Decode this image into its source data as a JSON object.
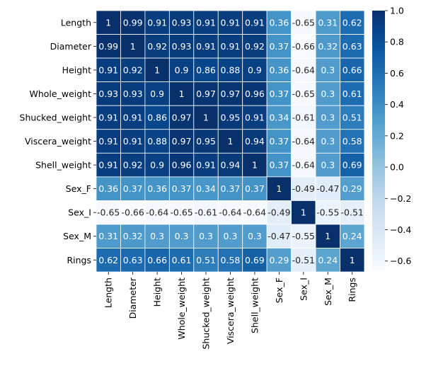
{
  "chart_data": {
    "type": "heatmap",
    "title": "",
    "xlabel": "",
    "ylabel": "",
    "row_labels": [
      "Length",
      "Diameter",
      "Height",
      "Whole_weight",
      "Shucked_weight",
      "Viscera_weight",
      "Shell_weight",
      "Sex_F",
      "Sex_I",
      "Sex_M",
      "Rings"
    ],
    "col_labels": [
      "Length",
      "Diameter",
      "Height",
      "Whole_weight",
      "Shucked_weight",
      "Viscera_weight",
      "Shell_weight",
      "Sex_F",
      "Sex_I",
      "Sex_M",
      "Rings"
    ],
    "values": [
      [
        1,
        0.99,
        0.91,
        0.93,
        0.91,
        0.91,
        0.91,
        0.36,
        -0.65,
        0.31,
        0.62
      ],
      [
        0.99,
        1,
        0.92,
        0.93,
        0.91,
        0.91,
        0.92,
        0.37,
        -0.66,
        0.32,
        0.63
      ],
      [
        0.91,
        0.92,
        1,
        0.9,
        0.86,
        0.88,
        0.9,
        0.36,
        -0.64,
        0.3,
        0.66
      ],
      [
        0.93,
        0.93,
        0.9,
        1,
        0.97,
        0.97,
        0.96,
        0.37,
        -0.65,
        0.3,
        0.61
      ],
      [
        0.91,
        0.91,
        0.86,
        0.97,
        1,
        0.95,
        0.91,
        0.34,
        -0.61,
        0.3,
        0.51
      ],
      [
        0.91,
        0.91,
        0.88,
        0.97,
        0.95,
        1,
        0.94,
        0.37,
        -0.64,
        0.3,
        0.58
      ],
      [
        0.91,
        0.92,
        0.9,
        0.96,
        0.91,
        0.94,
        1,
        0.37,
        -0.64,
        0.3,
        0.69
      ],
      [
        0.36,
        0.37,
        0.36,
        0.37,
        0.34,
        0.37,
        0.37,
        1,
        -0.49,
        -0.47,
        0.29
      ],
      [
        -0.65,
        -0.66,
        -0.64,
        -0.65,
        -0.61,
        -0.64,
        -0.64,
        -0.49,
        1,
        -0.55,
        -0.51
      ],
      [
        0.31,
        0.32,
        0.3,
        0.3,
        0.3,
        0.3,
        0.3,
        -0.47,
        -0.55,
        1,
        0.24
      ],
      [
        0.62,
        0.63,
        0.66,
        0.61,
        0.51,
        0.58,
        0.69,
        0.29,
        -0.51,
        0.24,
        1
      ]
    ],
    "vmin": -0.66,
    "vmax": 1.0,
    "colormap": "Blues",
    "colorbar": {
      "ticks": [
        1.0,
        0.8,
        0.6,
        0.4,
        0.2,
        0.0,
        -0.2,
        -0.4,
        -0.6
      ],
      "tick_labels": [
        "1.0",
        "0.8",
        "0.6",
        "0.4",
        "0.2",
        "0.0",
        "−0.2",
        "−0.4",
        "−0.6"
      ]
    },
    "grid_lines": true,
    "annotations": true,
    "legend": "colorbar-right"
  }
}
